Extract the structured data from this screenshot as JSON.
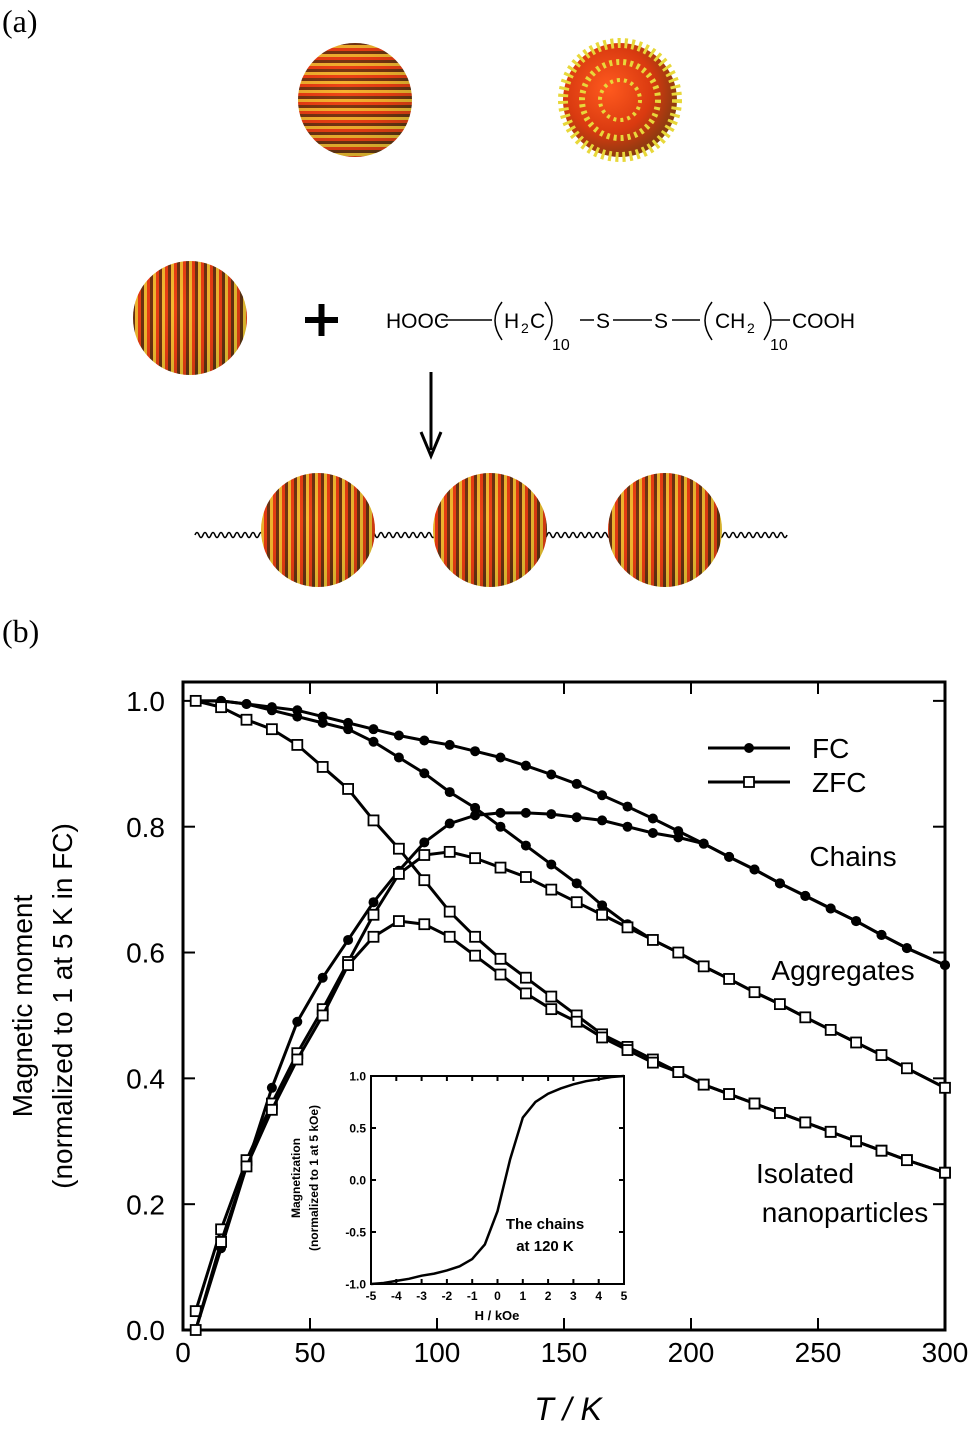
{
  "panel_a": {
    "label": "(a)",
    "formula": [
      "HOOC",
      "H",
      "2",
      "C",
      "10",
      "S",
      "S",
      "CH",
      "2",
      "10",
      "COOH"
    ]
  },
  "panel_b_label": "(b)",
  "chart_data": [
    {
      "type": "line",
      "y_label": [
        "Magnetic moment",
        "(normalized to 1 at 5 K in FC)"
      ],
      "x_label": "T / K",
      "xlim": [
        0,
        300
      ],
      "xticks": [
        0,
        50,
        100,
        150,
        200,
        250,
        300
      ],
      "ylim": [
        0,
        1.03
      ],
      "yticks": [
        {
          "value": 0,
          "label": "0.0"
        },
        0.2,
        0.4,
        0.6,
        0.8,
        {
          "value": 1,
          "label": "1.0"
        }
      ],
      "x": [
        5,
        15,
        25,
        35,
        45,
        55,
        65,
        75,
        85,
        95,
        105,
        115,
        125,
        135,
        145,
        155,
        165,
        175,
        185,
        195,
        205,
        215,
        225,
        235,
        245,
        255,
        265,
        275,
        285,
        300
      ],
      "legend": [
        {
          "name": "FC",
          "marker": "filled-circle"
        },
        {
          "name": "ZFC",
          "marker": "open-square"
        }
      ],
      "legend_position": "upper right",
      "annotations": [
        "Chains",
        "Aggregates",
        "Isolated",
        "nanoparticles"
      ],
      "series": [
        {
          "marker": "filled-circle",
          "color": "#000000",
          "values": [
            1.0,
            1.0,
            0.995,
            0.99,
            0.985,
            0.975,
            0.965,
            0.955,
            0.945,
            0.937,
            0.93,
            0.92,
            0.91,
            0.897,
            0.883,
            0.868,
            0.85,
            0.832,
            0.813,
            0.793,
            0.773,
            0.752,
            0.732,
            0.71,
            0.69,
            0.67,
            0.65,
            0.628,
            0.607,
            0.58
          ]
        },
        {
          "marker": "filled-circle",
          "color": "#000000",
          "values": [
            0.0,
            0.13,
            0.26,
            0.385,
            0.49,
            0.56,
            0.62,
            0.68,
            0.73,
            0.775,
            0.805,
            0.818,
            0.822,
            0.822,
            0.82,
            0.815,
            0.81,
            0.8,
            0.79,
            0.783,
            0.773,
            0.752,
            0.732,
            0.71,
            0.69,
            0.67,
            0.65,
            0.628,
            0.607,
            0.58
          ]
        },
        {
          "marker": "filled-circle",
          "color": "#000000",
          "values": [
            1.0,
            1.0,
            0.995,
            0.985,
            0.975,
            0.965,
            0.955,
            0.935,
            0.91,
            0.885,
            0.855,
            0.83,
            0.8,
            0.77,
            0.74,
            0.71,
            0.675,
            0.645,
            0.62,
            0.6,
            0.578,
            0.558,
            0.537,
            0.518,
            0.497,
            0.477,
            0.457,
            0.437,
            0.416,
            0.385
          ]
        },
        {
          "marker": "open-square",
          "color": "#000000",
          "values": [
            0.03,
            0.16,
            0.27,
            0.36,
            0.44,
            0.51,
            0.585,
            0.66,
            0.725,
            0.755,
            0.76,
            0.75,
            0.735,
            0.72,
            0.7,
            0.68,
            0.66,
            0.64,
            0.62,
            0.6,
            0.578,
            0.558,
            0.537,
            0.518,
            0.497,
            0.477,
            0.457,
            0.437,
            0.416,
            0.385
          ]
        },
        {
          "marker": "open-square",
          "color": "#000000",
          "values": [
            1.0,
            0.99,
            0.97,
            0.955,
            0.93,
            0.895,
            0.86,
            0.81,
            0.765,
            0.715,
            0.665,
            0.625,
            0.59,
            0.56,
            0.53,
            0.5,
            0.47,
            0.45,
            0.43,
            0.41,
            0.39,
            0.375,
            0.36,
            0.345,
            0.33,
            0.315,
            0.3,
            0.285,
            0.27,
            0.25
          ]
        },
        {
          "marker": "open-square",
          "color": "#000000",
          "values": [
            0.0,
            0.14,
            0.26,
            0.35,
            0.43,
            0.5,
            0.58,
            0.625,
            0.65,
            0.645,
            0.625,
            0.595,
            0.565,
            0.535,
            0.51,
            0.49,
            0.465,
            0.445,
            0.425,
            0.41,
            0.39,
            0.375,
            0.36,
            0.345,
            0.33,
            0.315,
            0.3,
            0.285,
            0.27,
            0.25
          ]
        }
      ]
    },
    {
      "type": "line",
      "y_label": [
        "Magnetization",
        "(normalized to 1 at 5 kOe)"
      ],
      "x_label": "H / kOe",
      "annotations": [
        "The chains",
        "at 120 K"
      ],
      "xlim": [
        -5,
        5
      ],
      "xticks": [
        -5,
        -4,
        -3,
        -2,
        -1,
        0,
        1,
        2,
        3,
        4,
        5
      ],
      "ylim": [
        -1,
        1
      ],
      "yticks": [
        {
          "value": -1,
          "label": "-1.0"
        },
        -0.5,
        {
          "value": 0,
          "label": "0.0"
        },
        0.5,
        {
          "value": 1,
          "label": "1.0"
        }
      ],
      "x": [
        -5,
        -4.5,
        -4,
        -3.5,
        -3,
        -2.5,
        -2,
        -1.5,
        -1,
        -0.5,
        0,
        0.5,
        1,
        1.5,
        2,
        2.5,
        3,
        3.5,
        4,
        4.5,
        5
      ],
      "series": [
        {
          "marker": "none",
          "color": "#000000",
          "values": [
            -1.0,
            -0.99,
            -0.97,
            -0.95,
            -0.92,
            -0.9,
            -0.87,
            -0.83,
            -0.76,
            -0.62,
            -0.3,
            0.2,
            0.6,
            0.75,
            0.83,
            0.88,
            0.92,
            0.95,
            0.97,
            0.99,
            1.0
          ]
        }
      ]
    }
  ]
}
